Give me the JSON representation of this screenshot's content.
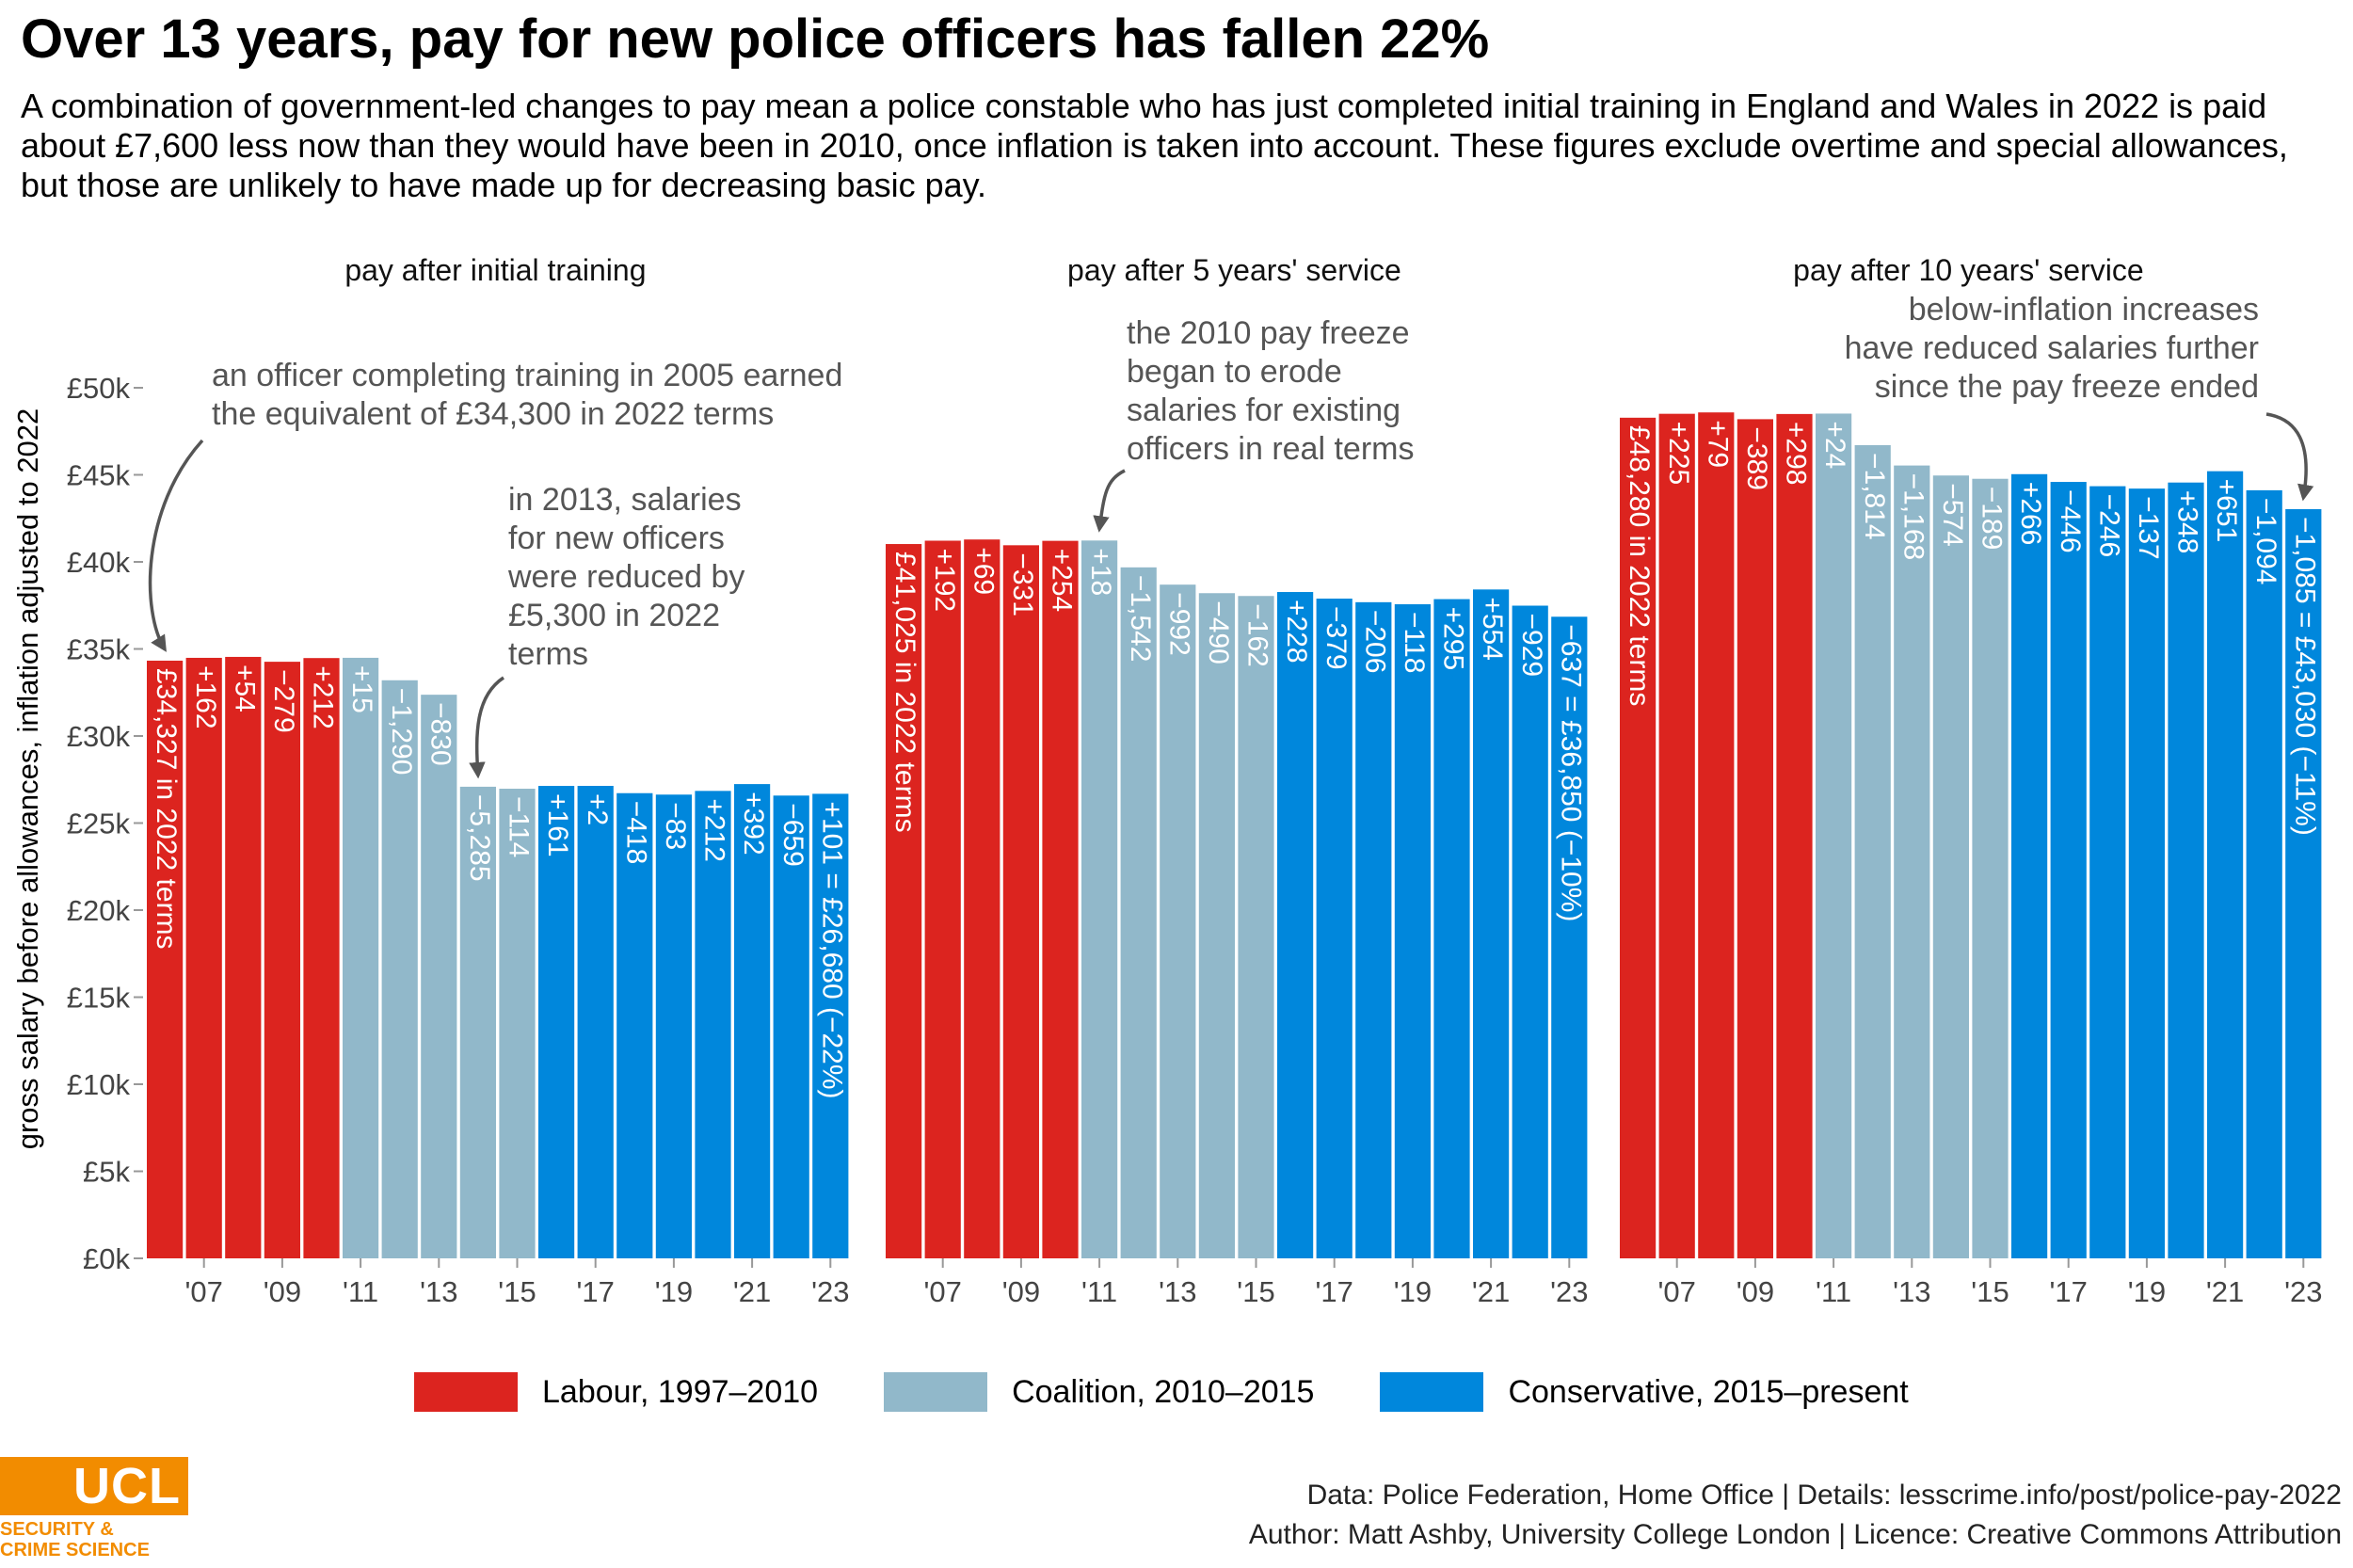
{
  "title": "Over 13 years, pay for new police officers has fallen 22%",
  "subtitle": "A combination of government-led changes to pay mean a police constable who has just completed initial training in England and Wales in 2022 is paid about £7,600 less now than they would have been in 2010, once inflation is taken into account. These figures exclude overtime and special allowances, but those are unlikely to have made up for decreasing basic pay.",
  "colors": {
    "labour": "#dc241f",
    "coalition": "#91b8ca",
    "conservative": "#0087dc",
    "annotation": "#555555",
    "axis_text": "#444444",
    "logo": "#f28c00"
  },
  "legend": [
    {
      "label": "Labour, 1997–2010",
      "color": "#dc241f"
    },
    {
      "label": "Coalition, 2010–2015",
      "color": "#91b8ca"
    },
    {
      "label": "Conservative, 2015–present",
      "color": "#0087dc"
    }
  ],
  "chart_data": {
    "type": "bar",
    "ylabel": "gross salary before allowances, inflation adjusted to 2022",
    "ylim": [
      0,
      50000
    ],
    "y_ticks": [
      {
        "value": 0,
        "label": "£0k"
      },
      {
        "value": 5000,
        "label": "£5k"
      },
      {
        "value": 10000,
        "label": "£10k"
      },
      {
        "value": 15000,
        "label": "£15k"
      },
      {
        "value": 20000,
        "label": "£20k"
      },
      {
        "value": 25000,
        "label": "£25k"
      },
      {
        "value": 30000,
        "label": "£30k"
      },
      {
        "value": 35000,
        "label": "£35k"
      },
      {
        "value": 40000,
        "label": "£40k"
      },
      {
        "value": 45000,
        "label": "£45k"
      },
      {
        "value": 50000,
        "label": "£50k"
      }
    ],
    "x_ticks": [
      "'07",
      "'09",
      "'11",
      "'13",
      "'15",
      "'17",
      "'19",
      "'21",
      "'23"
    ],
    "x_tick_years": [
      2007,
      2009,
      2011,
      2013,
      2015,
      2017,
      2019,
      2021,
      2023
    ],
    "years": [
      2006,
      2007,
      2008,
      2009,
      2010,
      2011,
      2012,
      2013,
      2014,
      2015,
      2016,
      2017,
      2018,
      2019,
      2020,
      2021,
      2022,
      2023
    ],
    "parties": [
      "labour",
      "labour",
      "labour",
      "labour",
      "labour",
      "coalition",
      "coalition",
      "coalition",
      "coalition",
      "coalition",
      "conservative",
      "conservative",
      "conservative",
      "conservative",
      "conservative",
      "conservative",
      "conservative",
      "conservative"
    ],
    "panels": [
      {
        "title": "pay after initial training",
        "values": [
          34327,
          34489,
          34543,
          34264,
          34476,
          34491,
          33201,
          32371,
          27086,
          26972,
          27133,
          27135,
          26717,
          26634,
          26846,
          27238,
          26579,
          26680
        ],
        "labels": [
          "£34,327 in 2022 terms",
          "+162",
          "+54",
          "−279",
          "+212",
          "+15",
          "−1,290",
          "−830",
          "−5,285",
          "−114",
          "+161",
          "+2",
          "−418",
          "−83",
          "+212",
          "+392",
          "−659",
          "+101 = £26,680 (−22%)"
        ]
      },
      {
        "title": "pay after 5 years' service",
        "values": [
          41025,
          41217,
          41286,
          40955,
          41209,
          41227,
          39685,
          38693,
          38203,
          38041,
          38269,
          37890,
          37684,
          37566,
          37861,
          38415,
          37486,
          36850
        ],
        "labels": [
          "£41,025 in 2022 terms",
          "+192",
          "+69",
          "−331",
          "+254",
          "+18",
          "−1,542",
          "−992",
          "−490",
          "−162",
          "+228",
          "−379",
          "−206",
          "−118",
          "+295",
          "+554",
          "−929",
          "−637 = £36,850 (−10%)"
        ]
      },
      {
        "title": "pay after 10 years' service",
        "values": [
          48280,
          48505,
          48584,
          48195,
          48493,
          48517,
          46703,
          45535,
          44961,
          44772,
          45038,
          44592,
          44346,
          44209,
          44557,
          45208,
          44114,
          43030
        ],
        "labels": [
          "£48,280 in 2022 terms",
          "+225",
          "+79",
          "−389",
          "+298",
          "+24",
          "−1,814",
          "−1,168",
          "−574",
          "−189",
          "+266",
          "−446",
          "−246",
          "−137",
          "+348",
          "+651",
          "−1,094",
          "−1,085 = £43,030 (−11%)"
        ]
      }
    ],
    "annotations": [
      {
        "panel": 0,
        "year": 2006,
        "lines": [
          "an officer completing training in 2005 earned",
          "the equivalent of £34,300 in 2022 terms"
        ]
      },
      {
        "panel": 0,
        "year": 2014,
        "lines": [
          "in 2013, salaries",
          "for new officers",
          "were reduced by",
          "£5,300 in 2022",
          "terms"
        ]
      },
      {
        "panel": 1,
        "year": 2011,
        "lines": [
          "the 2010 pay freeze",
          "began to erode",
          "salaries for existing",
          "officers in real terms"
        ]
      },
      {
        "panel": 2,
        "year": 2023,
        "lines": [
          "below-inflation increases",
          "have reduced salaries further",
          "since the pay freeze ended"
        ]
      }
    ]
  },
  "logo": {
    "text": "UCL",
    "sub_lines": [
      "SECURITY &",
      "CRIME SCIENCE"
    ]
  },
  "caption": [
    "Data: Police Federation, Home Office | Details: lesscrime.info/post/police-pay-2022",
    "Author: Matt Ashby, University College London | Licence: Creative Commons Attribution"
  ]
}
